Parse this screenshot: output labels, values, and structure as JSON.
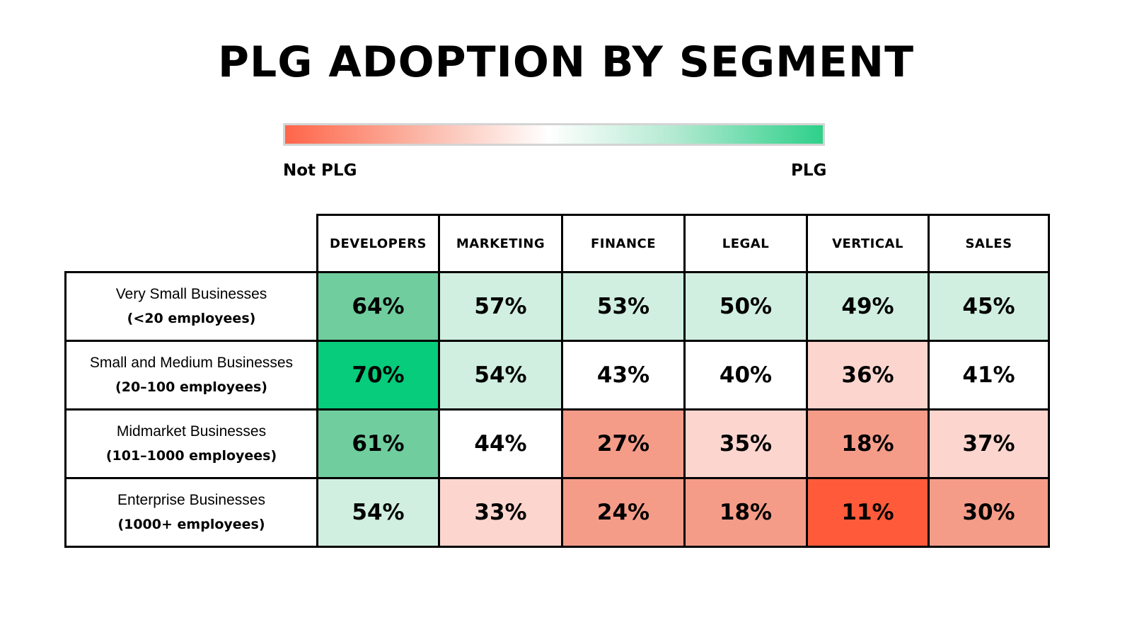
{
  "chart_data": {
    "type": "heatmap",
    "title": "PLG ADOPTION BY SEGMENT",
    "legend": {
      "low_label": "Not PLG",
      "high_label": "PLG",
      "colors": [
        "#ff6549",
        "#fbb6a6",
        "#ffffff",
        "#b4ead2",
        "#2ed08a"
      ],
      "placement": "top"
    },
    "columns": [
      "DEVELOPERS",
      "MARKETING",
      "FINANCE",
      "LEGAL",
      "VERTICAL",
      "SALES"
    ],
    "rows": [
      {
        "name": "Very Small Businesses",
        "size": "(<20 employees)"
      },
      {
        "name": "Small and Medium Businesses",
        "size": "(20–100 employees)"
      },
      {
        "name": "Midmarket Businesses",
        "size": "(101–1000 employees)"
      },
      {
        "name": "Enterprise Businesses",
        "size": "(1000+ employees)"
      }
    ],
    "values": [
      [
        64,
        57,
        53,
        50,
        49,
        45
      ],
      [
        70,
        54,
        43,
        40,
        36,
        41
      ],
      [
        61,
        44,
        27,
        35,
        18,
        37
      ],
      [
        54,
        33,
        24,
        18,
        11,
        30
      ]
    ],
    "value_suffix": "%",
    "cell_colors": [
      [
        "#70cd9e",
        "#d0efe0",
        "#d0efe0",
        "#d0efe0",
        "#d0efe0",
        "#d0efe0"
      ],
      [
        "#06cc7b",
        "#d0efe0",
        "#ffffff",
        "#ffffff",
        "#fcd6ce",
        "#ffffff"
      ],
      [
        "#70cd9e",
        "#ffffff",
        "#f59c89",
        "#fcd6ce",
        "#f59c89",
        "#fcd6ce"
      ],
      [
        "#d0efe0",
        "#fcd6ce",
        "#f59c89",
        "#f59c89",
        "#ff5b3a",
        "#f59c89"
      ]
    ]
  }
}
